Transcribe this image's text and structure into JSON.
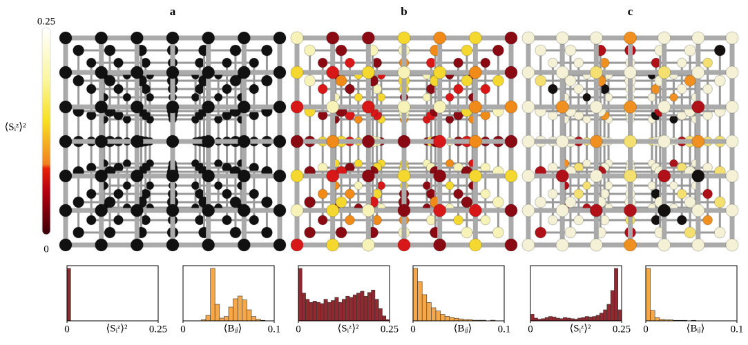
{
  "panels": [
    "a",
    "b",
    "c"
  ],
  "colorbar": {
    "label": "⟨Sᵢᶻ⟩²",
    "ticks": [
      0,
      0.25
    ]
  },
  "chart_data": [
    {
      "type": "histogram",
      "xlabel": "⟨Sᵢᶻ⟩²",
      "color": "#8e2a30",
      "xlim": [
        0,
        0.25
      ],
      "xticks": [
        0,
        0.25
      ],
      "bins": [
        0,
        0.01,
        0.02,
        0.03,
        0.04,
        0.05,
        0.06,
        0.07,
        0.08,
        0.09,
        0.1,
        0.11,
        0.12,
        0.13,
        0.14,
        0.15,
        0.16,
        0.17,
        0.18,
        0.19,
        0.2,
        0.21,
        0.22,
        0.23,
        0.24,
        0.25
      ],
      "counts": [
        100,
        0,
        0,
        0,
        0,
        0,
        0,
        0,
        0,
        0,
        0,
        0,
        0,
        0,
        0,
        0,
        0,
        0,
        0,
        0,
        0,
        0,
        0,
        0,
        0
      ]
    },
    {
      "type": "histogram",
      "xlabel": "⟨Bᵢⱼ⟩",
      "color": "#f5a84a",
      "xlim": [
        0,
        0.1
      ],
      "xticks": [
        0,
        0.1
      ],
      "bins": [
        0,
        0.005,
        0.01,
        0.015,
        0.02,
        0.025,
        0.03,
        0.035,
        0.04,
        0.045,
        0.05,
        0.055,
        0.06,
        0.065,
        0.07,
        0.075,
        0.08,
        0.085,
        0.09,
        0.095,
        0.1
      ],
      "counts": [
        0,
        0,
        0,
        0,
        2,
        10,
        95,
        30,
        5,
        8,
        25,
        40,
        45,
        38,
        20,
        8,
        3,
        1,
        0,
        0
      ]
    },
    {
      "type": "histogram",
      "xlabel": "⟨Sᵢᶻ⟩²",
      "color": "#8e2a30",
      "xlim": [
        0,
        0.25
      ],
      "xticks": [
        0,
        0.25
      ],
      "bins": [
        0,
        0.01,
        0.02,
        0.03,
        0.04,
        0.05,
        0.06,
        0.07,
        0.08,
        0.09,
        0.1,
        0.11,
        0.12,
        0.13,
        0.14,
        0.15,
        0.16,
        0.17,
        0.18,
        0.19,
        0.2,
        0.21,
        0.22,
        0.23,
        0.24,
        0.25
      ],
      "counts": [
        85,
        45,
        35,
        30,
        32,
        30,
        28,
        35,
        30,
        33,
        38,
        30,
        35,
        40,
        38,
        42,
        45,
        48,
        40,
        46,
        50,
        35,
        20,
        8,
        2
      ]
    },
    {
      "type": "histogram",
      "xlabel": "⟨Bᵢⱼ⟩",
      "color": "#f5a84a",
      "xlim": [
        0,
        0.1
      ],
      "xticks": [
        0,
        0.1
      ],
      "bins": [
        0,
        0.005,
        0.01,
        0.015,
        0.02,
        0.025,
        0.03,
        0.035,
        0.04,
        0.045,
        0.05,
        0.055,
        0.06,
        0.065,
        0.07,
        0.075,
        0.08,
        0.085,
        0.09,
        0.095,
        0.1
      ],
      "counts": [
        80,
        60,
        40,
        28,
        20,
        15,
        10,
        7,
        5,
        4,
        3,
        2,
        2,
        1,
        1,
        1,
        0,
        1,
        0,
        0
      ]
    },
    {
      "type": "histogram",
      "xlabel": "⟨Sᵢᶻ⟩²",
      "color": "#8e2a30",
      "xlim": [
        0,
        0.25
      ],
      "xticks": [
        0,
        0.25
      ],
      "bins": [
        0,
        0.01,
        0.02,
        0.03,
        0.04,
        0.05,
        0.06,
        0.07,
        0.08,
        0.09,
        0.1,
        0.11,
        0.12,
        0.13,
        0.14,
        0.15,
        0.16,
        0.17,
        0.18,
        0.19,
        0.2,
        0.21,
        0.22,
        0.23,
        0.24,
        0.25
      ],
      "counts": [
        12,
        5,
        3,
        4,
        6,
        8,
        7,
        5,
        4,
        6,
        5,
        4,
        3,
        5,
        6,
        8,
        7,
        8,
        10,
        14,
        20,
        30,
        55,
        95,
        20
      ]
    },
    {
      "type": "histogram",
      "xlabel": "⟨Bᵢⱼ⟩",
      "color": "#f5a84a",
      "xlim": [
        0,
        0.1
      ],
      "xticks": [
        0,
        0.1
      ],
      "bins": [
        0,
        0.005,
        0.01,
        0.015,
        0.02,
        0.025,
        0.03,
        0.035,
        0.04,
        0.045,
        0.05,
        0.055,
        0.06,
        0.065,
        0.07,
        0.075,
        0.08,
        0.085,
        0.09,
        0.095,
        0.1
      ],
      "counts": [
        100,
        20,
        6,
        3,
        2,
        2,
        1,
        1,
        1,
        0,
        1,
        0,
        0,
        0,
        0,
        0,
        0,
        0,
        0,
        0
      ]
    }
  ]
}
